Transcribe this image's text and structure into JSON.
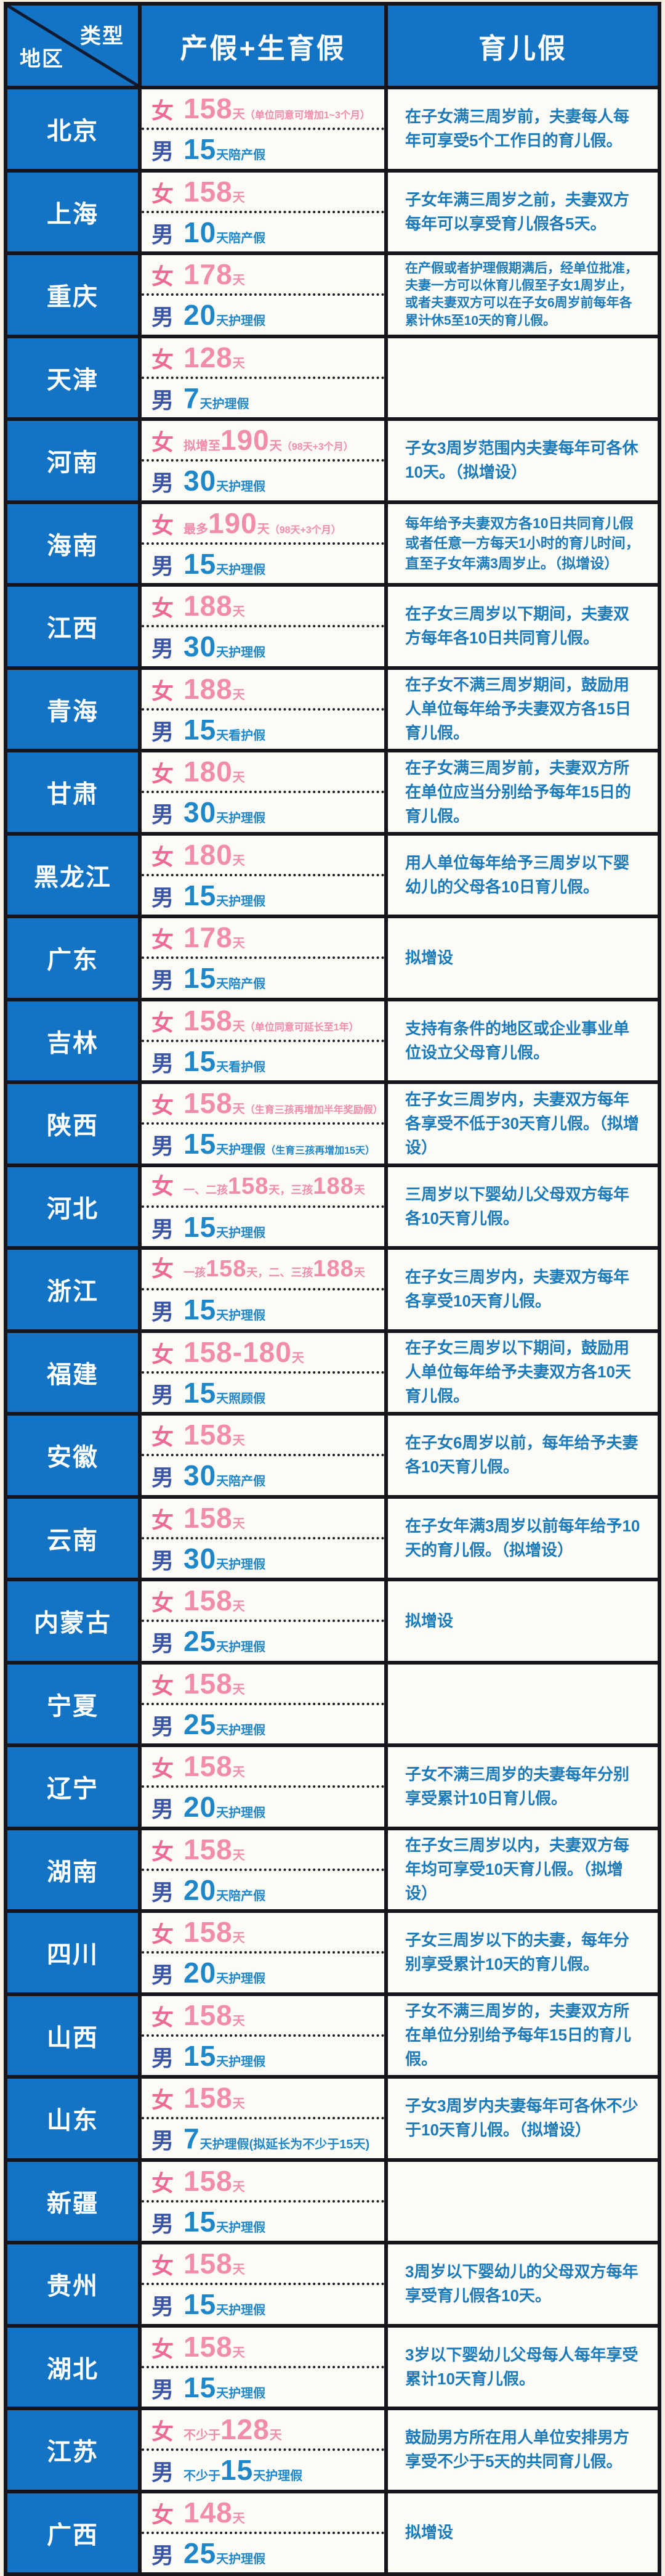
{
  "header": {
    "type_label": "类型",
    "region_label": "地区",
    "col_maternity": "产假+生育假",
    "col_parental": "育儿假"
  },
  "gender_labels": {
    "female": "女",
    "male": "男"
  },
  "colors": {
    "header_blue": "#1373c4",
    "grid_line": "#17151c",
    "female_pink": "#f18cab",
    "female_label_pink": "#ec6a95",
    "male_number_blue": "#1e87c9",
    "male_label_blue": "#3a55a6",
    "parental_text_blue": "#1b7ab9",
    "cell_bg": "#fdfbf6",
    "page_bg": "#f5f0e2"
  },
  "rows": [
    {
      "region": "北京",
      "female": [
        {
          "t": "158",
          "s": "num"
        },
        {
          "t": "天",
          "s": "unit"
        },
        {
          "t": "（单位同意可增加1~3个月）",
          "s": "note"
        }
      ],
      "male": [
        {
          "t": "15",
          "s": "num"
        },
        {
          "t": "天陪产假",
          "s": "unit"
        }
      ],
      "parental": "在子女满三周岁前，夫妻每人每年可享受5个工作日的育儿假。"
    },
    {
      "region": "上海",
      "female": [
        {
          "t": "158",
          "s": "num"
        },
        {
          "t": "天",
          "s": "unit"
        }
      ],
      "male": [
        {
          "t": "10",
          "s": "num"
        },
        {
          "t": "天陪产假",
          "s": "unit"
        }
      ],
      "parental": "子女年满三周岁之前，夫妻双方每年可以享受育儿假各5天。"
    },
    {
      "region": "重庆",
      "female": [
        {
          "t": "178",
          "s": "num"
        },
        {
          "t": "天",
          "s": "unit"
        }
      ],
      "male": [
        {
          "t": "20",
          "s": "num"
        },
        {
          "t": "天护理假",
          "s": "unit"
        }
      ],
      "parental": "在产假或者护理假期满后，经单位批准，夫妻一方可以休育儿假至子女1周岁止，或者夫妻双方可以在子女6周岁前每年各累计休5至10天的育儿假。"
    },
    {
      "region": "天津",
      "female": [
        {
          "t": "128",
          "s": "num"
        },
        {
          "t": "天",
          "s": "unit"
        }
      ],
      "male": [
        {
          "t": "7",
          "s": "num"
        },
        {
          "t": "天护理假",
          "s": "unit"
        }
      ],
      "parental": ""
    },
    {
      "region": "河南",
      "female": [
        {
          "t": "拟增至",
          "s": "pre"
        },
        {
          "t": "190",
          "s": "num"
        },
        {
          "t": "天",
          "s": "unit"
        },
        {
          "t": "（98天+3个月）",
          "s": "note"
        }
      ],
      "male": [
        {
          "t": "30",
          "s": "num"
        },
        {
          "t": "天护理假",
          "s": "unit"
        }
      ],
      "parental": "子女3周岁范围内夫妻每年可各休10天。（拟增设）"
    },
    {
      "region": "海南",
      "female": [
        {
          "t": "最多",
          "s": "pre"
        },
        {
          "t": "190",
          "s": "num"
        },
        {
          "t": "天",
          "s": "unit"
        },
        {
          "t": "（98天+3个月）",
          "s": "note"
        }
      ],
      "male": [
        {
          "t": "15",
          "s": "num"
        },
        {
          "t": "天护理假",
          "s": "unit"
        }
      ],
      "parental": "每年给予夫妻双方各10日共同育儿假或者任意一方每天1小时的育儿时间，直至子女年满3周岁止。（拟增设）"
    },
    {
      "region": "江西",
      "female": [
        {
          "t": "188",
          "s": "num"
        },
        {
          "t": "天",
          "s": "unit"
        }
      ],
      "male": [
        {
          "t": "30",
          "s": "num"
        },
        {
          "t": "天护理假",
          "s": "unit"
        }
      ],
      "parental": "在子女三周岁以下期间，夫妻双方每年各10日共同育儿假。"
    },
    {
      "region": "青海",
      "female": [
        {
          "t": "188",
          "s": "num"
        },
        {
          "t": "天",
          "s": "unit"
        }
      ],
      "male": [
        {
          "t": "15",
          "s": "num"
        },
        {
          "t": "天看护假",
          "s": "unit"
        }
      ],
      "parental": "在子女不满三周岁期间，鼓励用人单位每年给予夫妻双方各15日育儿假。"
    },
    {
      "region": "甘肃",
      "female": [
        {
          "t": "180",
          "s": "num"
        },
        {
          "t": "天",
          "s": "unit"
        }
      ],
      "male": [
        {
          "t": "30",
          "s": "num"
        },
        {
          "t": "天护理假",
          "s": "unit"
        }
      ],
      "parental": "在子女满三周岁前，夫妻双方所在单位应当分别给予每年15日的育儿假。"
    },
    {
      "region": "黑龙江",
      "female": [
        {
          "t": "180",
          "s": "num"
        },
        {
          "t": "天",
          "s": "unit"
        }
      ],
      "male": [
        {
          "t": "15",
          "s": "num"
        },
        {
          "t": "天护理假",
          "s": "unit"
        }
      ],
      "parental": "用人单位每年给予三周岁以下婴幼儿的父母各10日育儿假。"
    },
    {
      "region": "广东",
      "female": [
        {
          "t": "178",
          "s": "num"
        },
        {
          "t": "天",
          "s": "unit"
        }
      ],
      "male": [
        {
          "t": "15",
          "s": "num"
        },
        {
          "t": "天陪产假",
          "s": "unit"
        }
      ],
      "parental": "拟增设"
    },
    {
      "region": "吉林",
      "female": [
        {
          "t": "158",
          "s": "num"
        },
        {
          "t": "天",
          "s": "unit"
        },
        {
          "t": "（单位同意可延长至1年）",
          "s": "note"
        }
      ],
      "male": [
        {
          "t": "15",
          "s": "num"
        },
        {
          "t": "天看护假",
          "s": "unit"
        }
      ],
      "parental": "支持有条件的地区或企业事业单位设立父母育儿假。"
    },
    {
      "region": "陕西",
      "female": [
        {
          "t": "158",
          "s": "num"
        },
        {
          "t": "天",
          "s": "unit"
        },
        {
          "t": "（生育三孩再增加半年奖励假）",
          "s": "note"
        }
      ],
      "male": [
        {
          "t": "15",
          "s": "num"
        },
        {
          "t": "天护理假",
          "s": "unit"
        },
        {
          "t": "（生育三孩再增加15天）",
          "s": "note"
        }
      ],
      "parental": "在子女三周岁内，夫妻双方每年各享受不低于30天育儿假。（拟增设）"
    },
    {
      "region": "河北",
      "female": [
        {
          "t": "一、二孩",
          "s": "pre"
        },
        {
          "t": "158",
          "s": "num"
        },
        {
          "t": "天，",
          "s": "unit"
        },
        {
          "t": "三孩",
          "s": "pre"
        },
        {
          "t": "188",
          "s": "num"
        },
        {
          "t": "天",
          "s": "unit"
        }
      ],
      "male": [
        {
          "t": "15",
          "s": "num"
        },
        {
          "t": "天护理假",
          "s": "unit"
        }
      ],
      "parental": "三周岁以下婴幼儿父母双方每年各10天育儿假。"
    },
    {
      "region": "浙江",
      "female": [
        {
          "t": "一孩",
          "s": "pre"
        },
        {
          "t": "158",
          "s": "num"
        },
        {
          "t": "天，",
          "s": "unit"
        },
        {
          "t": "二、三孩",
          "s": "pre"
        },
        {
          "t": "188",
          "s": "num"
        },
        {
          "t": "天",
          "s": "unit"
        }
      ],
      "male": [
        {
          "t": "15",
          "s": "num"
        },
        {
          "t": "天护理假",
          "s": "unit"
        }
      ],
      "parental": "在子女三周岁内，夫妻双方每年各享受10天育儿假。"
    },
    {
      "region": "福建",
      "female": [
        {
          "t": "158-180",
          "s": "num"
        },
        {
          "t": "天",
          "s": "unit"
        }
      ],
      "male": [
        {
          "t": "15",
          "s": "num"
        },
        {
          "t": "天照顾假",
          "s": "unit"
        }
      ],
      "parental": "在子女三周岁以下期间，鼓励用人单位每年给予夫妻双方各10天育儿假。"
    },
    {
      "region": "安徽",
      "female": [
        {
          "t": "158",
          "s": "num"
        },
        {
          "t": "天",
          "s": "unit"
        }
      ],
      "male": [
        {
          "t": "30",
          "s": "num"
        },
        {
          "t": "天陪产假",
          "s": "unit"
        }
      ],
      "parental": "在子女6周岁以前，每年给予夫妻各10天育儿假。"
    },
    {
      "region": "云南",
      "female": [
        {
          "t": "158",
          "s": "num"
        },
        {
          "t": "天",
          "s": "unit"
        }
      ],
      "male": [
        {
          "t": "30",
          "s": "num"
        },
        {
          "t": "天护理假",
          "s": "unit"
        }
      ],
      "parental": "在子女年满3周岁以前每年给予10天的育儿假。（拟增设）"
    },
    {
      "region": "内蒙古",
      "female": [
        {
          "t": "158",
          "s": "num"
        },
        {
          "t": "天",
          "s": "unit"
        }
      ],
      "male": [
        {
          "t": "25",
          "s": "num"
        },
        {
          "t": "天护理假",
          "s": "unit"
        }
      ],
      "parental": "拟增设"
    },
    {
      "region": "宁夏",
      "female": [
        {
          "t": "158",
          "s": "num"
        },
        {
          "t": "天",
          "s": "unit"
        }
      ],
      "male": [
        {
          "t": "25",
          "s": "num"
        },
        {
          "t": "天护理假",
          "s": "unit"
        }
      ],
      "parental": ""
    },
    {
      "region": "辽宁",
      "female": [
        {
          "t": "158",
          "s": "num"
        },
        {
          "t": "天",
          "s": "unit"
        }
      ],
      "male": [
        {
          "t": "20",
          "s": "num"
        },
        {
          "t": "天护理假",
          "s": "unit"
        }
      ],
      "parental": "子女不满三周岁的夫妻每年分别享受累计10日育儿假。"
    },
    {
      "region": "湖南",
      "female": [
        {
          "t": "158",
          "s": "num"
        },
        {
          "t": "天",
          "s": "unit"
        }
      ],
      "male": [
        {
          "t": "20",
          "s": "num"
        },
        {
          "t": "天陪产假",
          "s": "unit"
        }
      ],
      "parental": "在子女三周岁以内，夫妻双方每年均可享受10天育儿假。（拟增设）"
    },
    {
      "region": "四川",
      "female": [
        {
          "t": "158",
          "s": "num"
        },
        {
          "t": "天",
          "s": "unit"
        }
      ],
      "male": [
        {
          "t": "20",
          "s": "num"
        },
        {
          "t": "天护理假",
          "s": "unit"
        }
      ],
      "parental": "子女三周岁以下的夫妻，每年分别享受累计10天的育儿假。"
    },
    {
      "region": "山西",
      "female": [
        {
          "t": "158",
          "s": "num"
        },
        {
          "t": "天",
          "s": "unit"
        }
      ],
      "male": [
        {
          "t": "15",
          "s": "num"
        },
        {
          "t": "天护理假",
          "s": "unit"
        }
      ],
      "parental": "子女不满三周岁的，夫妻双方所在单位分别给予每年15日的育儿假。"
    },
    {
      "region": "山东",
      "female": [
        {
          "t": "158",
          "s": "num"
        },
        {
          "t": "天",
          "s": "unit"
        }
      ],
      "male": [
        {
          "t": "7",
          "s": "num"
        },
        {
          "t": "天护理假(拟延长为不少于15天)",
          "s": "unit"
        }
      ],
      "parental": "子女3周岁内夫妻每年可各休不少于10天育儿假。（拟增设）"
    },
    {
      "region": "新疆",
      "female": [
        {
          "t": "158",
          "s": "num"
        },
        {
          "t": "天",
          "s": "unit"
        }
      ],
      "male": [
        {
          "t": "15",
          "s": "num"
        },
        {
          "t": "天护理假",
          "s": "unit"
        }
      ],
      "parental": ""
    },
    {
      "region": "贵州",
      "female": [
        {
          "t": "158",
          "s": "num"
        },
        {
          "t": "天",
          "s": "unit"
        }
      ],
      "male": [
        {
          "t": "15",
          "s": "num"
        },
        {
          "t": "天护理假",
          "s": "unit"
        }
      ],
      "parental": "3周岁以下婴幼儿的父母双方每年享受育儿假各10天。"
    },
    {
      "region": "湖北",
      "female": [
        {
          "t": "158",
          "s": "num"
        },
        {
          "t": "天",
          "s": "unit"
        }
      ],
      "male": [
        {
          "t": "15",
          "s": "num"
        },
        {
          "t": "天护理假",
          "s": "unit"
        }
      ],
      "parental": "3岁以下婴幼儿父母每人每年享受累计10天育儿假。"
    },
    {
      "region": "江苏",
      "female": [
        {
          "t": "不少于",
          "s": "pre"
        },
        {
          "t": "128",
          "s": "num"
        },
        {
          "t": "天",
          "s": "unit"
        }
      ],
      "male": [
        {
          "t": "不少于",
          "s": "pre"
        },
        {
          "t": "15",
          "s": "num"
        },
        {
          "t": "天护理假",
          "s": "unit"
        }
      ],
      "parental": "鼓励男方所在用人单位安排男方享受不少于5天的共同育儿假。"
    },
    {
      "region": "广西",
      "female": [
        {
          "t": "148",
          "s": "num"
        },
        {
          "t": "天",
          "s": "unit"
        }
      ],
      "male": [
        {
          "t": "25",
          "s": "num"
        },
        {
          "t": "天护理假",
          "s": "unit"
        }
      ],
      "parental": "拟增设"
    }
  ]
}
